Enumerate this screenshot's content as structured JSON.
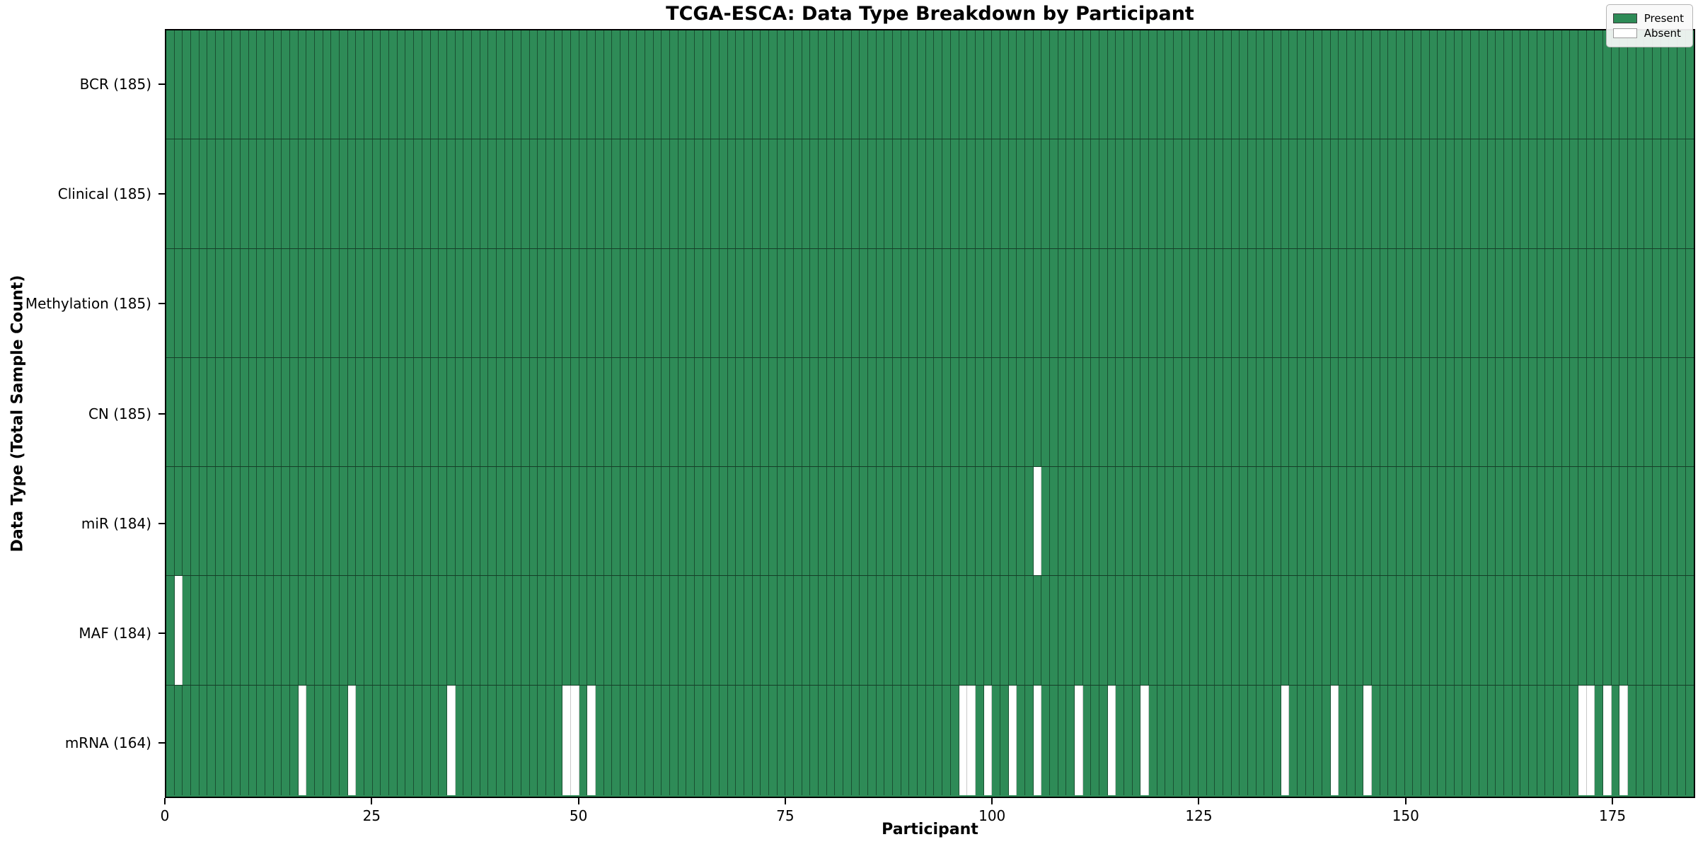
{
  "title": "TCGA-ESCA: Data Type Breakdown by Participant",
  "axes": {
    "x_label": "Participant",
    "y_label": "Data Type (Total Sample Count)",
    "x_ticks": [
      0,
      25,
      50,
      75,
      100,
      125,
      150,
      175
    ]
  },
  "legend": {
    "position": "upper right",
    "items": [
      {
        "label": "Present",
        "color": "#2e8b57"
      },
      {
        "label": "Absent",
        "color": "#ffffff"
      }
    ]
  },
  "colors": {
    "present": "#2e8b57",
    "absent": "#ffffff",
    "cell_edge": "rgba(0,0,0,0.42)"
  },
  "chart_data": {
    "type": "heatmap",
    "x_range": [
      0,
      185
    ],
    "n_participants": 185,
    "value_legend": {
      "1": "Present",
      "0": "Absent"
    },
    "rows": [
      {
        "label": "BCR (185)",
        "name": "BCR",
        "present_count": 185,
        "absent_participants": []
      },
      {
        "label": "Clinical (185)",
        "name": "Clinical",
        "present_count": 185,
        "absent_participants": []
      },
      {
        "label": "Methylation (185)",
        "name": "Methylation",
        "present_count": 185,
        "absent_participants": []
      },
      {
        "label": "CN (185)",
        "name": "CN",
        "present_count": 185,
        "absent_participants": []
      },
      {
        "label": "miR (184)",
        "name": "miR",
        "present_count": 184,
        "absent_participants": [
          105
        ]
      },
      {
        "label": "MAF (184)",
        "name": "MAF",
        "present_count": 184,
        "absent_participants": [
          1
        ]
      },
      {
        "label": "mRNA (164)",
        "name": "mRNA",
        "present_count": 164,
        "absent_participants": [
          16,
          22,
          34,
          48,
          49,
          51,
          96,
          97,
          99,
          102,
          105,
          110,
          114,
          118,
          135,
          141,
          145,
          171,
          172,
          174,
          176
        ]
      }
    ],
    "grid": "cell-edges-on",
    "legend_position": "upper right"
  }
}
